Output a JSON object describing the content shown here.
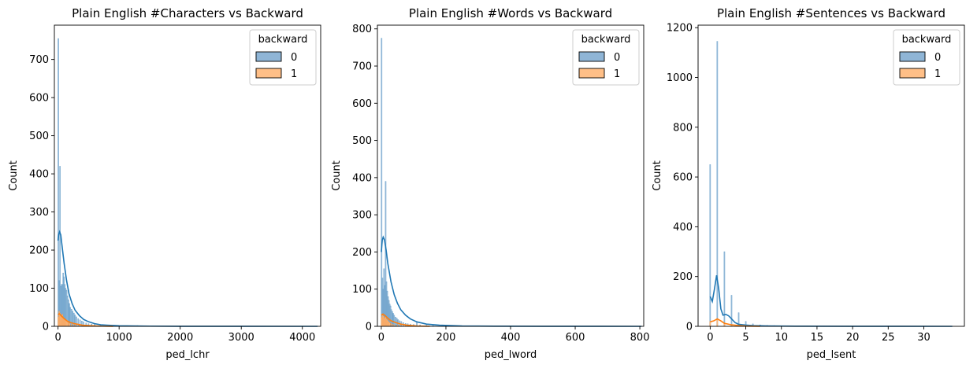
{
  "figure": {
    "colors": {
      "series0": "#1f77b4",
      "series1": "#ff7f0e",
      "series0_fill": "#8fb5d6",
      "series1_fill": "#ffbf87"
    }
  },
  "chart_data": [
    {
      "type": "histogram",
      "title": "Plain English #Characters vs Backward",
      "xlabel": "ped_lchr",
      "ylabel": "Count",
      "xlim": [
        -60,
        4300
      ],
      "ylim": [
        0,
        790
      ],
      "xticks": [
        0,
        1000,
        2000,
        3000,
        4000
      ],
      "yticks": [
        0,
        100,
        200,
        300,
        400,
        500,
        600,
        700
      ],
      "legend": {
        "title": "backward",
        "entries": [
          "0",
          "1"
        ],
        "position": "top-right"
      },
      "series": [
        {
          "name": "0",
          "bars": [
            [
              5,
              755
            ],
            [
              18,
              120
            ],
            [
              32,
              420
            ],
            [
              45,
              105
            ],
            [
              58,
              110
            ],
            [
              72,
              110
            ],
            [
              85,
              140
            ],
            [
              98,
              130
            ],
            [
              112,
              110
            ],
            [
              125,
              100
            ],
            [
              140,
              95
            ],
            [
              155,
              80
            ],
            [
              170,
              70
            ],
            [
              185,
              60
            ],
            [
              200,
              50
            ],
            [
              220,
              45
            ],
            [
              240,
              40
            ],
            [
              260,
              35
            ],
            [
              280,
              30
            ],
            [
              300,
              25
            ],
            [
              330,
              20
            ],
            [
              360,
              17
            ],
            [
              390,
              14
            ],
            [
              420,
              12
            ],
            [
              460,
              9
            ],
            [
              500,
              7
            ],
            [
              550,
              6
            ],
            [
              600,
              5
            ],
            [
              700,
              4
            ],
            [
              800,
              3
            ],
            [
              900,
              2
            ],
            [
              1100,
              1
            ],
            [
              1300,
              2
            ],
            [
              1600,
              1
            ]
          ],
          "bin_width": 13,
          "kde": [
            [
              0,
              225
            ],
            [
              10,
              240
            ],
            [
              25,
              248
            ],
            [
              45,
              240
            ],
            [
              70,
              205
            ],
            [
              100,
              165
            ],
            [
              140,
              120
            ],
            [
              180,
              85
            ],
            [
              230,
              60
            ],
            [
              280,
              42
            ],
            [
              350,
              28
            ],
            [
              420,
              18
            ],
            [
              500,
              12
            ],
            [
              600,
              7
            ],
            [
              700,
              4
            ],
            [
              800,
              3
            ],
            [
              1000,
              1.5
            ],
            [
              1500,
              0.5
            ],
            [
              2000,
              0.2
            ],
            [
              3000,
              0.05
            ],
            [
              4250,
              0
            ]
          ]
        },
        {
          "name": "1",
          "bars": [
            [
              5,
              25
            ],
            [
              18,
              40
            ],
            [
              32,
              35
            ],
            [
              45,
              30
            ],
            [
              58,
              28
            ],
            [
              72,
              32
            ],
            [
              85,
              25
            ],
            [
              98,
              22
            ],
            [
              112,
              20
            ],
            [
              125,
              18
            ],
            [
              140,
              15
            ],
            [
              155,
              12
            ],
            [
              170,
              10
            ],
            [
              190,
              8
            ],
            [
              220,
              6
            ],
            [
              260,
              5
            ],
            [
              300,
              4
            ],
            [
              350,
              3
            ],
            [
              400,
              2
            ]
          ],
          "bin_width": 13,
          "kde": [
            [
              0,
              30
            ],
            [
              20,
              33
            ],
            [
              50,
              28
            ],
            [
              100,
              20
            ],
            [
              150,
              14
            ],
            [
              200,
              10
            ],
            [
              300,
              6
            ],
            [
              400,
              3
            ],
            [
              550,
              1.5
            ],
            [
              700,
              0.5
            ],
            [
              900,
              0
            ]
          ]
        }
      ]
    },
    {
      "type": "histogram",
      "title": "Plain English #Words vs Backward",
      "xlabel": "ped_lword",
      "ylabel": "Count",
      "xlim": [
        -12,
        812
      ],
      "ylim": [
        0,
        810
      ],
      "xticks": [
        0,
        200,
        400,
        600,
        800
      ],
      "yticks": [
        0,
        100,
        200,
        300,
        400,
        500,
        600,
        700,
        800
      ],
      "legend": {
        "title": "backward",
        "entries": [
          "0",
          "1"
        ],
        "position": "top-right"
      },
      "series": [
        {
          "name": "0",
          "bars": [
            [
              1,
              775
            ],
            [
              3.5,
              130
            ],
            [
              6,
              100
            ],
            [
              8.5,
              155
            ],
            [
              11,
              110
            ],
            [
              13.5,
              390
            ],
            [
              16,
              120
            ],
            [
              18.5,
              95
            ],
            [
              21,
              80
            ],
            [
              23.5,
              70
            ],
            [
              26,
              60
            ],
            [
              28.5,
              55
            ],
            [
              31,
              45
            ],
            [
              34,
              40
            ],
            [
              37,
              35
            ],
            [
              40,
              30
            ],
            [
              44,
              25
            ],
            [
              48,
              22
            ],
            [
              52,
              18
            ],
            [
              57,
              15
            ],
            [
              62,
              13
            ],
            [
              68,
              10
            ],
            [
              75,
              8
            ],
            [
              82,
              7
            ],
            [
              90,
              6
            ],
            [
              100,
              5
            ],
            [
              110,
              12
            ],
            [
              120,
              4
            ],
            [
              140,
              3
            ],
            [
              160,
              2
            ],
            [
              200,
              1
            ],
            [
              250,
              1
            ],
            [
              300,
              0.6
            ]
          ],
          "bin_width": 2.5,
          "kde": [
            [
              0,
              200
            ],
            [
              3,
              232
            ],
            [
              6,
              240
            ],
            [
              10,
              232
            ],
            [
              15,
              205
            ],
            [
              20,
              170
            ],
            [
              30,
              120
            ],
            [
              40,
              85
            ],
            [
              50,
              62
            ],
            [
              60,
              45
            ],
            [
              75,
              30
            ],
            [
              90,
              20
            ],
            [
              110,
              12
            ],
            [
              140,
              6
            ],
            [
              180,
              3
            ],
            [
              250,
              1
            ],
            [
              350,
              0.4
            ],
            [
              500,
              0.1
            ],
            [
              805,
              0
            ]
          ]
        },
        {
          "name": "1",
          "bars": [
            [
              1,
              25
            ],
            [
              3.5,
              30
            ],
            [
              6,
              28
            ],
            [
              8.5,
              25
            ],
            [
              11,
              22
            ],
            [
              13.5,
              25
            ],
            [
              16,
              20
            ],
            [
              18.5,
              18
            ],
            [
              21,
              15
            ],
            [
              23.5,
              12
            ],
            [
              26,
              10
            ],
            [
              30,
              8
            ],
            [
              35,
              6
            ],
            [
              40,
              5
            ],
            [
              50,
              4
            ],
            [
              60,
              3
            ],
            [
              75,
              2
            ]
          ],
          "bin_width": 2.5,
          "kde": [
            [
              0,
              30
            ],
            [
              5,
              33
            ],
            [
              10,
              30
            ],
            [
              20,
              22
            ],
            [
              30,
              15
            ],
            [
              45,
              10
            ],
            [
              60,
              6
            ],
            [
              80,
              3
            ],
            [
              110,
              1
            ],
            [
              150,
              0
            ]
          ]
        }
      ]
    },
    {
      "type": "histogram",
      "title": "Plain English #Sentences vs Backward",
      "xlabel": "ped_lsent",
      "ylabel": "Count",
      "xlim": [
        -1.7,
        35.7
      ],
      "ylim": [
        0,
        1210
      ],
      "xticks": [
        0,
        5,
        10,
        15,
        20,
        25,
        30
      ],
      "yticks": [
        0,
        200,
        400,
        600,
        800,
        1000,
        1200
      ],
      "legend": {
        "title": "backward",
        "entries": [
          "0",
          "1"
        ],
        "position": "top-right"
      },
      "series": [
        {
          "name": "0",
          "bars": [
            [
              0,
              650
            ],
            [
              1,
              1145
            ],
            [
              2,
              300
            ],
            [
              3,
              125
            ],
            [
              4,
              55
            ],
            [
              5,
              20
            ],
            [
              6,
              10
            ],
            [
              7,
              6
            ],
            [
              8,
              4
            ],
            [
              9,
              3
            ],
            [
              10,
              2
            ],
            [
              12,
              2
            ],
            [
              15,
              1
            ]
          ],
          "bin_width": 0.12,
          "kde": [
            [
              0,
              120
            ],
            [
              0.3,
              100
            ],
            [
              0.6,
              150
            ],
            [
              0.9,
              205
            ],
            [
              1.2,
              150
            ],
            [
              1.5,
              70
            ],
            [
              1.8,
              45
            ],
            [
              2.2,
              48
            ],
            [
              2.6,
              42
            ],
            [
              3,
              30
            ],
            [
              3.5,
              15
            ],
            [
              4,
              8
            ],
            [
              5,
              5
            ],
            [
              6,
              3
            ],
            [
              8,
              1.5
            ],
            [
              12,
              0.5
            ],
            [
              20,
              0.1
            ],
            [
              34,
              0
            ]
          ]
        },
        {
          "name": "1",
          "bars": [
            [
              0,
              20
            ],
            [
              1,
              30
            ],
            [
              2,
              12
            ],
            [
              3,
              6
            ],
            [
              4,
              3
            ]
          ],
          "bin_width": 0.12,
          "kde": [
            [
              0,
              18
            ],
            [
              0.5,
              22
            ],
            [
              1,
              30
            ],
            [
              1.5,
              22
            ],
            [
              2,
              12
            ],
            [
              3,
              6
            ],
            [
              4,
              3
            ],
            [
              5,
              1
            ],
            [
              7,
              0
            ]
          ]
        }
      ]
    }
  ]
}
